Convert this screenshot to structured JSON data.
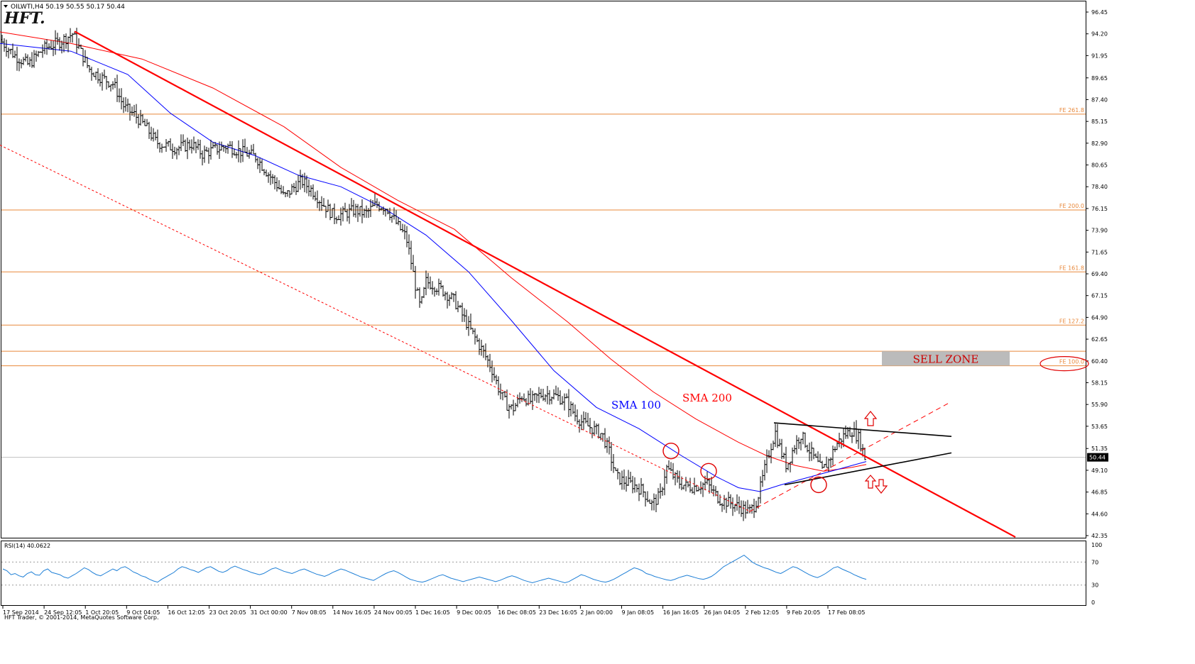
{
  "window": {
    "symbol_caption": "OILWTI,H4  50.19 50.55 50.17 50.44",
    "logo_text": "HFT.",
    "footer": "HFT Trader, © 2001-2014, MetaQuotes Software Corp."
  },
  "colors": {
    "price_bars": "#000000",
    "sma100": "#0000ff",
    "sma200": "#ff0000",
    "trendline": "#ff0000",
    "fib_levels": "#e8883a",
    "rsi": "#1e7fd6",
    "sell_zone_bg": "#bbbbbb",
    "sell_zone_text": "#cc0000",
    "triangle": "#000000"
  },
  "chart_data": [
    {
      "type": "candlestick",
      "instrument": "OILWTI",
      "timeframe": "H4",
      "last_price": 50.44,
      "last_price_label": "50.44",
      "ylim": [
        42.35,
        96.45
      ],
      "y_ticks": [
        "96.45",
        "94.20",
        "91.95",
        "89.65",
        "87.40",
        "85.15",
        "82.90",
        "80.65",
        "78.40",
        "76.15",
        "73.90",
        "71.65",
        "69.40",
        "67.15",
        "64.90",
        "62.65",
        "60.40",
        "58.15",
        "55.90",
        "53.65",
        "51.35",
        "49.10",
        "46.85",
        "44.60",
        "42.35"
      ],
      "x_ticks": [
        "17 Sep 2014",
        "24 Sep 12:05",
        "1 Oct 20:05",
        "9 Oct 04:05",
        "16 Oct 12:05",
        "23 Oct 20:05",
        "31 Oct 00:00",
        "7 Nov 08:05",
        "14 Nov 16:05",
        "24 Nov 00:05",
        "1 Dec 16:05",
        "9 Dec 00:05",
        "16 Dec 08:05",
        "23 Dec 16:05",
        "2 Jan 00:00",
        "9 Jan 08:05",
        "16 Jan 16:05",
        "26 Jan 04:05",
        "2 Feb 12:05",
        "9 Feb 20:05",
        "17 Feb 08:05"
      ],
      "price_path": [
        [
          0,
          93.6
        ],
        [
          20,
          92.0
        ],
        [
          40,
          91.0
        ],
        [
          60,
          92.6
        ],
        [
          85,
          93.4
        ],
        [
          102,
          94.2
        ],
        [
          112,
          92.6
        ],
        [
          125,
          90.6
        ],
        [
          140,
          89.8
        ],
        [
          160,
          89.0
        ],
        [
          175,
          86.6
        ],
        [
          190,
          85.8
        ],
        [
          205,
          84.6
        ],
        [
          220,
          83.0
        ],
        [
          235,
          82.6
        ],
        [
          250,
          82.4
        ],
        [
          270,
          82.8
        ],
        [
          285,
          81.8
        ],
        [
          300,
          82.2
        ],
        [
          320,
          82.6
        ],
        [
          340,
          82.0
        ],
        [
          360,
          81.5
        ],
        [
          375,
          80.0
        ],
        [
          392,
          78.4
        ],
        [
          400,
          77.3
        ],
        [
          412,
          78.2
        ],
        [
          425,
          79.0
        ],
        [
          440,
          78.0
        ],
        [
          455,
          76.6
        ],
        [
          470,
          75.4
        ],
        [
          485,
          75.6
        ],
        [
          500,
          76.0
        ],
        [
          515,
          75.6
        ],
        [
          530,
          76.6
        ],
        [
          545,
          76.2
        ],
        [
          560,
          74.4
        ],
        [
          572,
          73.2
        ],
        [
          578,
          71.0
        ],
        [
          585,
          68.2
        ],
        [
          592,
          65.8
        ],
        [
          600,
          68.6
        ],
        [
          612,
          68.2
        ],
        [
          625,
          67.6
        ],
        [
          640,
          66.6
        ],
        [
          655,
          64.6
        ],
        [
          668,
          62.9
        ],
        [
          680,
          61.4
        ],
        [
          692,
          59.7
        ],
        [
          702,
          57.6
        ],
        [
          712,
          56.0
        ],
        [
          722,
          55.4
        ],
        [
          735,
          56.8
        ],
        [
          748,
          56.2
        ],
        [
          760,
          56.9
        ],
        [
          772,
          57.0
        ],
        [
          785,
          56.7
        ],
        [
          798,
          56.2
        ],
        [
          810,
          54.8
        ],
        [
          822,
          53.9
        ],
        [
          835,
          53.4
        ],
        [
          848,
          52.8
        ],
        [
          858,
          51.0
        ],
        [
          868,
          48.4
        ],
        [
          880,
          47.9
        ],
        [
          892,
          47.6
        ],
        [
          905,
          47.0
        ],
        [
          918,
          45.6
        ],
        [
          930,
          46.5
        ],
        [
          938,
          49.4
        ],
        [
          945,
          48.8
        ],
        [
          955,
          47.9
        ],
        [
          965,
          47.5
        ],
        [
          975,
          47.4
        ],
        [
          985,
          47.5
        ],
        [
          995,
          47.8
        ],
        [
          1005,
          46.8
        ],
        [
          1015,
          46.0
        ],
        [
          1025,
          45.8
        ],
        [
          1035,
          45.5
        ],
        [
          1045,
          45.2
        ],
        [
          1055,
          44.8
        ],
        [
          1063,
          45.5
        ],
        [
          1070,
          47.0
        ],
        [
          1078,
          49.5
        ],
        [
          1085,
          51.5
        ],
        [
          1092,
          53.0
        ],
        [
          1100,
          51.0
        ],
        [
          1108,
          49.5
        ],
        [
          1118,
          51.5
        ],
        [
          1128,
          52.8
        ],
        [
          1138,
          51.4
        ],
        [
          1148,
          50.2
        ],
        [
          1158,
          49.0
        ],
        [
          1168,
          50.2
        ],
        [
          1178,
          51.8
        ],
        [
          1190,
          52.8
        ],
        [
          1200,
          53.2
        ],
        [
          1210,
          52.4
        ],
        [
          1218,
          50.44
        ]
      ],
      "sma100_path": [
        [
          0,
          93.2
        ],
        [
          100,
          92.4
        ],
        [
          180,
          90.0
        ],
        [
          240,
          86.0
        ],
        [
          300,
          83.0
        ],
        [
          360,
          81.6
        ],
        [
          420,
          79.6
        ],
        [
          480,
          78.4
        ],
        [
          540,
          76.2
        ],
        [
          600,
          73.4
        ],
        [
          660,
          69.6
        ],
        [
          720,
          64.6
        ],
        [
          780,
          59.4
        ],
        [
          840,
          55.6
        ],
        [
          900,
          53.4
        ],
        [
          960,
          50.6
        ],
        [
          1010,
          48.4
        ],
        [
          1040,
          47.3
        ],
        [
          1070,
          46.9
        ],
        [
          1100,
          47.6
        ],
        [
          1140,
          48.4
        ],
        [
          1180,
          49.2
        ],
        [
          1220,
          50.0
        ]
      ],
      "sma200_path": [
        [
          0,
          94.4
        ],
        [
          100,
          93.2
        ],
        [
          200,
          91.6
        ],
        [
          300,
          88.6
        ],
        [
          400,
          84.6
        ],
        [
          480,
          80.4
        ],
        [
          560,
          77.0
        ],
        [
          640,
          74.0
        ],
        [
          720,
          69.0
        ],
        [
          800,
          64.4
        ],
        [
          860,
          60.6
        ],
        [
          920,
          57.2
        ],
        [
          980,
          54.4
        ],
        [
          1040,
          52.0
        ],
        [
          1080,
          50.6
        ],
        [
          1120,
          49.6
        ],
        [
          1160,
          49.0
        ],
        [
          1200,
          49.4
        ],
        [
          1220,
          49.7
        ]
      ],
      "annotations": {
        "fib_levels": [
          {
            "label": "FE 261.8",
            "price": 85.9
          },
          {
            "label": "FE 200.0",
            "price": 76.0
          },
          {
            "label": "FE 161.8",
            "price": 69.6
          },
          {
            "label": "FE 127.2",
            "price": 64.1
          },
          {
            "label": "FE 100.0",
            "price": 59.9
          }
        ],
        "extra_level_price": 61.4,
        "price_line": 50.44,
        "sell_zone": {
          "label": "SELL ZONE",
          "price_top": 61.4,
          "price_bottom": 59.9,
          "x_start": 1242,
          "x_end": 1422
        },
        "sma100_label": "SMA 100",
        "sma200_label": "SMA 200",
        "main_trendline": [
          [
            105,
            94.45
          ],
          [
            1430,
            42.2
          ]
        ],
        "channel_line": [
          [
            0,
            82.7
          ],
          [
            1055,
            44.9
          ]
        ],
        "triangle_top": [
          [
            1090,
            54.0
          ],
          [
            1340,
            52.6
          ]
        ],
        "triangle_bottom": [
          [
            1105,
            47.6
          ],
          [
            1340,
            50.9
          ]
        ],
        "support_dashed": [
          [
            1055,
            44.8
          ],
          [
            1335,
            56.0
          ]
        ],
        "circles": [
          [
            945,
            51.1
          ],
          [
            998,
            49.0
          ],
          [
            1153,
            47.6
          ]
        ],
        "up_arrow_x": 1226,
        "down_arrow_x": 1233
      }
    },
    {
      "type": "line",
      "title": "RSI(14) 40.0622",
      "ylim": [
        0,
        100
      ],
      "y_ticks": [
        "100",
        "70",
        "30",
        "0"
      ],
      "levels": [
        70,
        30
      ],
      "values": [
        58,
        55,
        48,
        50,
        46,
        44,
        50,
        53,
        48,
        47,
        55,
        58,
        52,
        50,
        48,
        44,
        42,
        46,
        50,
        55,
        60,
        57,
        52,
        48,
        46,
        50,
        54,
        58,
        55,
        60,
        62,
        58,
        53,
        50,
        46,
        44,
        40,
        37,
        35,
        40,
        44,
        48,
        52,
        58,
        62,
        60,
        57,
        55,
        52,
        56,
        60,
        62,
        58,
        54,
        52,
        55,
        60,
        63,
        60,
        57,
        55,
        52,
        50,
        48,
        50,
        54,
        58,
        60,
        57,
        54,
        52,
        50,
        53,
        56,
        58,
        55,
        52,
        49,
        47,
        45,
        48,
        52,
        55,
        58,
        56,
        53,
        50,
        47,
        44,
        42,
        40,
        38,
        42,
        46,
        50,
        53,
        55,
        52,
        48,
        44,
        40,
        38,
        36,
        35,
        37,
        40,
        43,
        46,
        48,
        45,
        42,
        40,
        38,
        36,
        38,
        40,
        42,
        44,
        42,
        40,
        38,
        36,
        38,
        41,
        44,
        46,
        44,
        41,
        38,
        36,
        34,
        36,
        38,
        40,
        42,
        40,
        38,
        36,
        34,
        36,
        40,
        44,
        48,
        46,
        43,
        40,
        38,
        36,
        35,
        37,
        40,
        44,
        48,
        52,
        56,
        60,
        58,
        55,
        50,
        48,
        45,
        43,
        41,
        39,
        38,
        40,
        43,
        45,
        47,
        45,
        43,
        41,
        40,
        42,
        45,
        50,
        56,
        62,
        66,
        70,
        74,
        78,
        82,
        76,
        70,
        66,
        63,
        60,
        58,
        55,
        52,
        50,
        54,
        58,
        62,
        60,
        56,
        52,
        48,
        45,
        43,
        46,
        50,
        55,
        60,
        62,
        58,
        55,
        52,
        48,
        45,
        42,
        40
      ]
    }
  ]
}
